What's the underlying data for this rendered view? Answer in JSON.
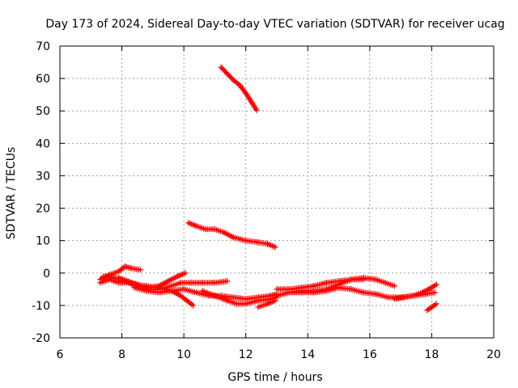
{
  "chart_data": {
    "type": "scatter",
    "title": "Day 173 of 2024, Sidereal Day-to-day VTEC variation (SDTVAR) for receiver ucag",
    "xlabel": "GPS time / hours",
    "ylabel": "SDTVAR / TECUs",
    "xlim": [
      6,
      20
    ],
    "ylim": [
      -20,
      70
    ],
    "xticks": [
      6,
      8,
      10,
      12,
      14,
      16,
      18,
      20
    ],
    "yticks": [
      -20,
      -10,
      0,
      10,
      20,
      30,
      40,
      50,
      60,
      70
    ],
    "grid": true,
    "legend": "none",
    "color": "#ff0000",
    "marker": "plus",
    "series": [
      {
        "x": [
          11.2,
          11.4,
          11.6,
          11.8,
          12.0,
          12.2,
          12.35
        ],
        "y": [
          63.5,
          61.5,
          59.5,
          58,
          55.5,
          52.5,
          50.2
        ]
      },
      {
        "x": [
          10.15,
          10.4,
          10.7,
          11.0,
          11.3,
          11.6,
          12.0,
          12.4,
          12.7,
          12.95
        ],
        "y": [
          15.5,
          14.5,
          13.5,
          13.5,
          12.5,
          11,
          10,
          9.5,
          9,
          8
        ]
      },
      {
        "x": [
          7.3,
          7.6,
          7.9,
          8.1,
          8.3,
          8.6
        ],
        "y": [
          -2,
          -0.5,
          0.5,
          2,
          1.5,
          1
        ]
      },
      {
        "x": [
          7.3,
          7.6,
          7.9,
          8.2,
          8.5,
          8.8,
          9.2,
          9.6,
          9.9,
          10.2,
          10.6,
          11.0,
          11.4
        ],
        "y": [
          -3,
          -2,
          -3,
          -3,
          -4,
          -5,
          -5,
          -4,
          -3,
          -3,
          -3,
          -3,
          -2.5
        ]
      },
      {
        "x": [
          7.9,
          8.2,
          8.5,
          8.8,
          9.2,
          9.5,
          9.8,
          10.05
        ],
        "y": [
          -1.5,
          -2.5,
          -3.5,
          -4.5,
          -4,
          -2.5,
          -1,
          0
        ]
      },
      {
        "x": [
          7.4,
          7.8,
          8.1,
          8.4,
          8.8,
          9.2,
          9.6,
          9.9,
          10.1,
          10.3
        ],
        "y": [
          -1,
          -1.5,
          -2.5,
          -3.5,
          -4,
          -4.5,
          -5.5,
          -7,
          -8.5,
          -10
        ]
      },
      {
        "x": [
          8.4,
          8.8,
          9.2,
          9.6,
          10.0,
          10.4,
          10.8,
          11.2,
          11.6,
          12.0,
          12.4,
          12.8,
          13.0
        ],
        "y": [
          -4.5,
          -5.5,
          -6,
          -5.5,
          -5,
          -6,
          -7,
          -7,
          -7.5,
          -8,
          -7.5,
          -7,
          -6.5
        ]
      },
      {
        "x": [
          10.6,
          11.0,
          11.4,
          11.7,
          12.0,
          12.4,
          12.8,
          13.0
        ],
        "y": [
          -5.5,
          -7,
          -8.5,
          -9.5,
          -9.5,
          -8.5,
          -8,
          -7.5
        ]
      },
      {
        "x": [
          12.4,
          12.7,
          12.95
        ],
        "y": [
          -10.5,
          -9.5,
          -8.5
        ]
      },
      {
        "x": [
          13.0,
          13.4,
          13.8,
          14.2,
          14.6,
          15.0,
          15.4,
          15.8
        ],
        "y": [
          -7,
          -6,
          -5.5,
          -5.5,
          -5,
          -3.5,
          -2,
          -2
        ]
      },
      {
        "x": [
          13.0,
          13.4,
          13.8,
          14.2,
          14.6,
          15.0,
          15.4,
          15.8,
          16.2,
          16.5,
          16.8
        ],
        "y": [
          -5,
          -5,
          -4.5,
          -4,
          -3,
          -2.5,
          -2,
          -1.5,
          -2,
          -3,
          -4
        ]
      },
      {
        "x": [
          13.4,
          13.8,
          14.2,
          14.6,
          15.0,
          15.4,
          15.8,
          16.2,
          16.6,
          17.0,
          17.4,
          17.8,
          18.1
        ],
        "y": [
          -6,
          -6,
          -6,
          -5.5,
          -4.5,
          -5,
          -6,
          -6.5,
          -7.5,
          -7.5,
          -7,
          -6.5,
          -6
        ]
      },
      {
        "x": [
          16.8,
          17.1,
          17.4,
          17.7,
          18.0,
          18.15
        ],
        "y": [
          -8,
          -7.5,
          -7,
          -6,
          -4.5,
          -3.5
        ]
      },
      {
        "x": [
          17.85,
          18.0,
          18.15
        ],
        "y": [
          -11.5,
          -10.5,
          -9.5
        ]
      }
    ]
  }
}
